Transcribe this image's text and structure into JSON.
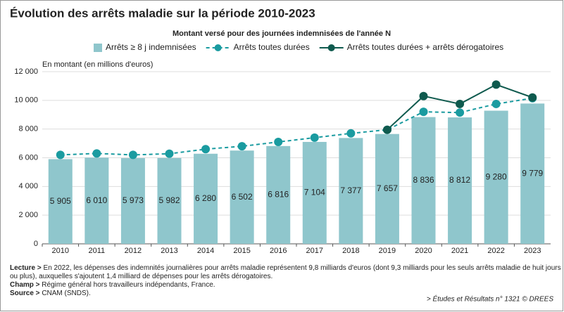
{
  "chart_data": {
    "type": "bar",
    "title": "Évolution des arrêts maladie sur la période 2010-2023",
    "subtitle": "Montant versé pour des journées indemnisées de l'année N",
    "y_axis_label": "En montant (en millions d'euros)",
    "categories": [
      "2010",
      "2011",
      "2012",
      "2013",
      "2014",
      "2015",
      "2016",
      "2017",
      "2018",
      "2019",
      "2020",
      "2021",
      "2022",
      "2023"
    ],
    "series": [
      {
        "name": "Arrêts ≥ 8 j indemnisées",
        "type": "bar",
        "color": "#8fc6cc",
        "values": [
          5905,
          6010,
          5973,
          5982,
          6280,
          6502,
          6816,
          7104,
          7377,
          7657,
          8836,
          8812,
          9280,
          9779
        ],
        "value_labels": [
          "5 905",
          "6 010",
          "5 973",
          "5 982",
          "6 280",
          "6 502",
          "6 816",
          "7 104",
          "7 377",
          "7 657",
          "8 836",
          "8 812",
          "9 280",
          "9 779"
        ]
      },
      {
        "name": "Arrêts toutes durées",
        "type": "line",
        "dashed": true,
        "color": "#1a9ba0",
        "values": [
          6200,
          6300,
          6200,
          6280,
          6600,
          6800,
          7100,
          7400,
          7700,
          7950,
          9200,
          9150,
          9750,
          10150
        ]
      },
      {
        "name": "Arrêts toutes durées + arrêts dérogatoires",
        "type": "line",
        "dashed": false,
        "color": "#0f5a4e",
        "values": [
          null,
          null,
          null,
          null,
          null,
          null,
          null,
          null,
          null,
          7950,
          10300,
          9750,
          11100,
          10200
        ]
      }
    ],
    "ylim": [
      0,
      12000
    ],
    "yticks": [
      0,
      {
        "value": 2000,
        "label": "2 000"
      },
      {
        "value": 4000,
        "label": "4 000"
      },
      {
        "value": 6000,
        "label": "6 000"
      },
      {
        "value": 8000,
        "label": "8 000"
      },
      {
        "value": 10000,
        "label": "10 000"
      },
      {
        "value": 12000,
        "label": "12 000"
      }
    ],
    "grid": true,
    "notes": [
      {
        "label": "Lecture >",
        "text": "En 2022, les dépenses des indemnités journalières pour arrêts maladie représentent 9,8 milliards d'euros (dont 9,3 milliards pour les seuls arrêts maladie de huit jours"
      },
      {
        "label": "",
        "text": "ou plus), auxquelles s'ajoutent 1,4 milliard de dépenses pour les arrêts dérogatoires."
      },
      {
        "label": "Champ >",
        "text": "Régime général hors travailleurs indépendants, France."
      },
      {
        "label": "Source >",
        "text": "CNAM (SNDS)."
      }
    ],
    "credit": "> Études et Résultats n° 1321 © DREES"
  }
}
